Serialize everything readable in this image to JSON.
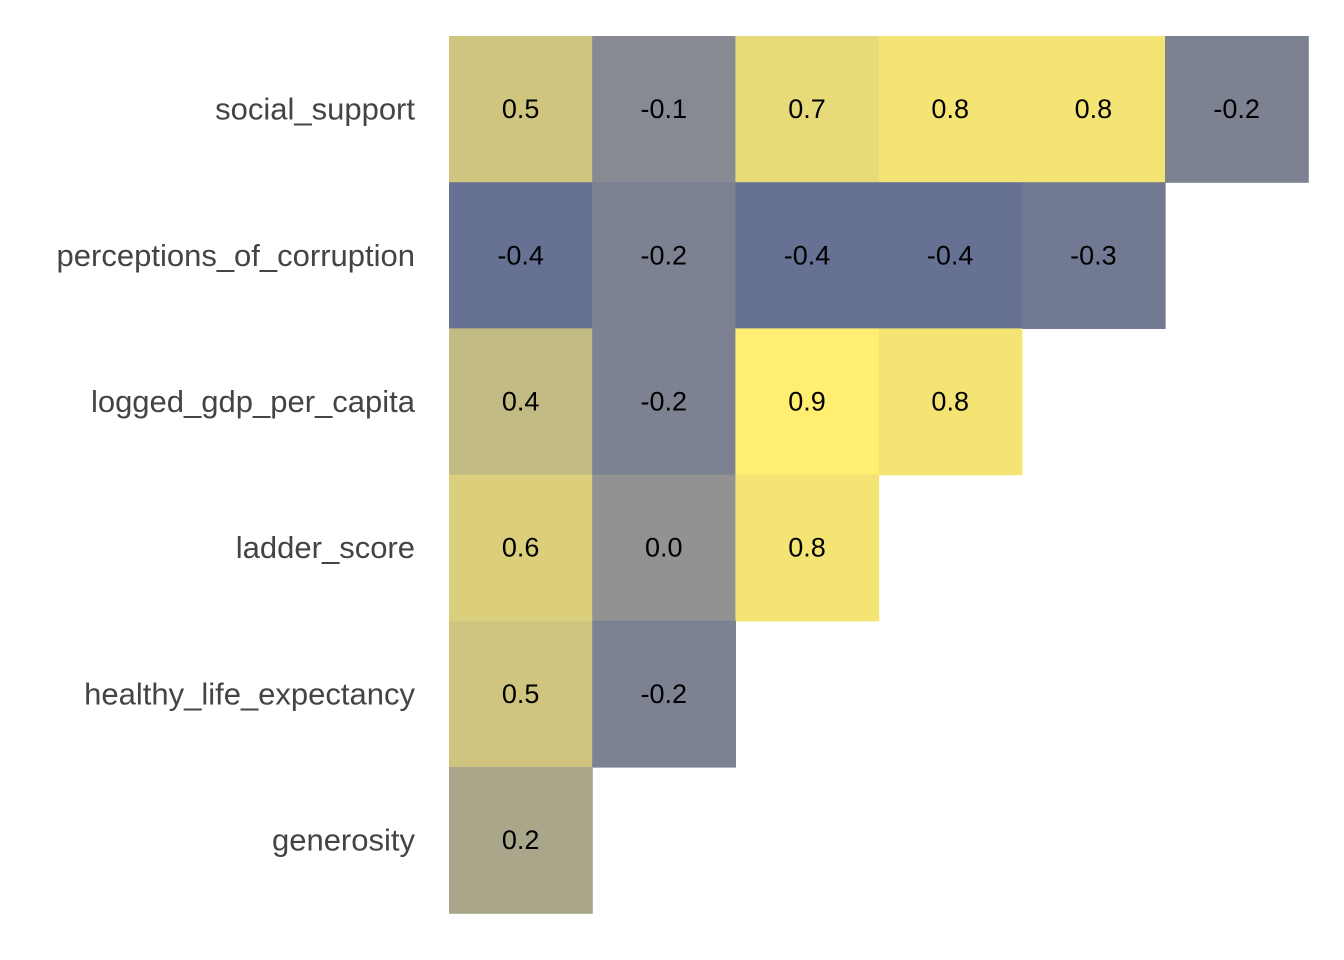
{
  "chart_data": {
    "type": "heatmap",
    "title": "",
    "xlabel": "",
    "ylabel": "",
    "rows": [
      "social_support",
      "perceptions_of_corruption",
      "logged_gdp_per_capita",
      "ladder_score",
      "healthy_life_expectancy",
      "generosity"
    ],
    "matrix": [
      [
        0.5,
        -0.1,
        0.7,
        0.8,
        0.8,
        -0.2
      ],
      [
        -0.4,
        -0.2,
        -0.4,
        -0.4,
        -0.3
      ],
      [
        0.4,
        -0.2,
        0.9,
        0.8
      ],
      [
        0.6,
        0.0,
        0.8
      ],
      [
        0.5,
        -0.2
      ],
      [
        0.2
      ]
    ],
    "value_labels": [
      [
        "0.5",
        "-0.1",
        "0.7",
        "0.8",
        "0.8",
        "-0.2"
      ],
      [
        "-0.4",
        "-0.2",
        "-0.4",
        "-0.4",
        "-0.3"
      ],
      [
        "0.4",
        "-0.2",
        "0.9",
        "0.8"
      ],
      [
        "0.6",
        "0.0",
        "0.8"
      ],
      [
        "0.5",
        "-0.2"
      ],
      [
        "0.2"
      ]
    ],
    "value_range": [
      -0.4,
      0.9
    ],
    "colorscale": {
      "low": "#677193",
      "mid": "#929292",
      "high": "#FFEE70"
    },
    "grid": false,
    "legend": "none"
  }
}
